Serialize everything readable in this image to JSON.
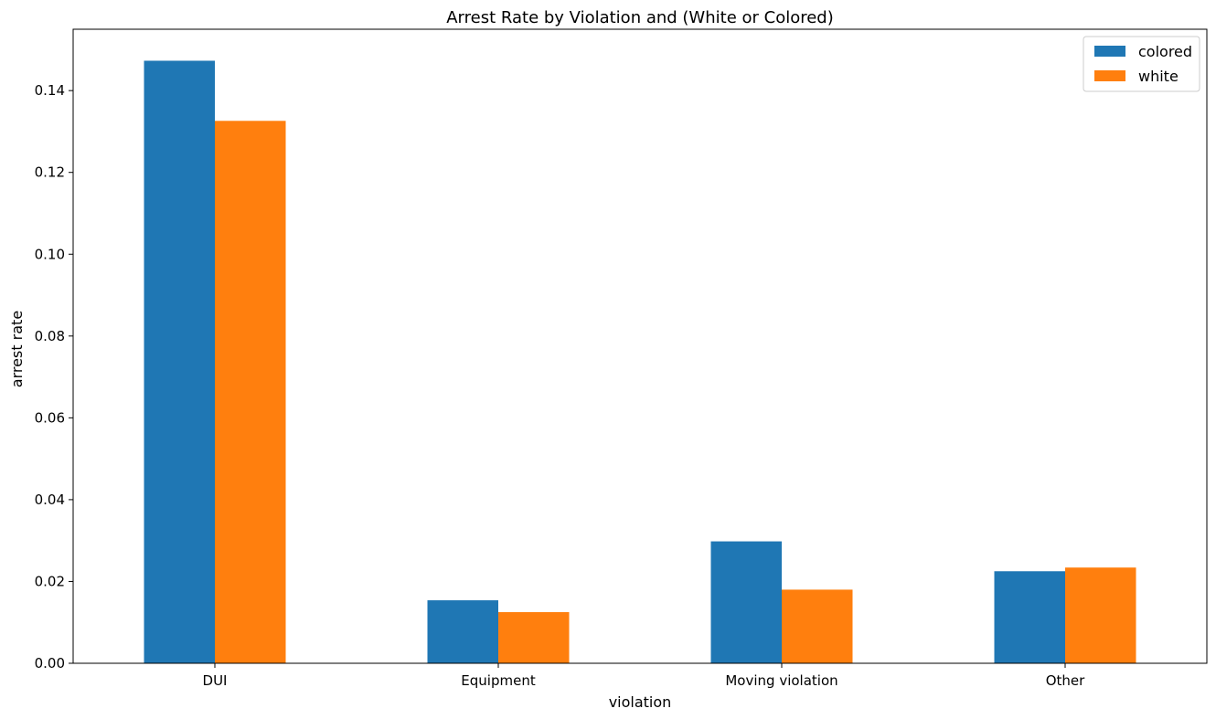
{
  "chart_data": {
    "type": "bar",
    "title": "Arrest Rate by Violation and (White or Colored)",
    "xlabel": "violation",
    "ylabel": "arrest rate",
    "categories": [
      "DUI",
      "Equipment",
      "Moving violation",
      "Other"
    ],
    "series": [
      {
        "name": "colored",
        "color": "#1f77b4",
        "values": [
          0.1473,
          0.0154,
          0.0298,
          0.0225
        ]
      },
      {
        "name": "white",
        "color": "#ff7f0e",
        "values": [
          0.1326,
          0.0125,
          0.018,
          0.0234
        ]
      }
    ],
    "ylim": [
      0,
      0.155
    ],
    "yticks": [
      0.0,
      0.02,
      0.04,
      0.06,
      0.08,
      0.1,
      0.12,
      0.14
    ],
    "ytick_labels": [
      "0.00",
      "0.02",
      "0.04",
      "0.06",
      "0.08",
      "0.10",
      "0.12",
      "0.14"
    ],
    "grid": false,
    "legend_position": "top-right"
  }
}
